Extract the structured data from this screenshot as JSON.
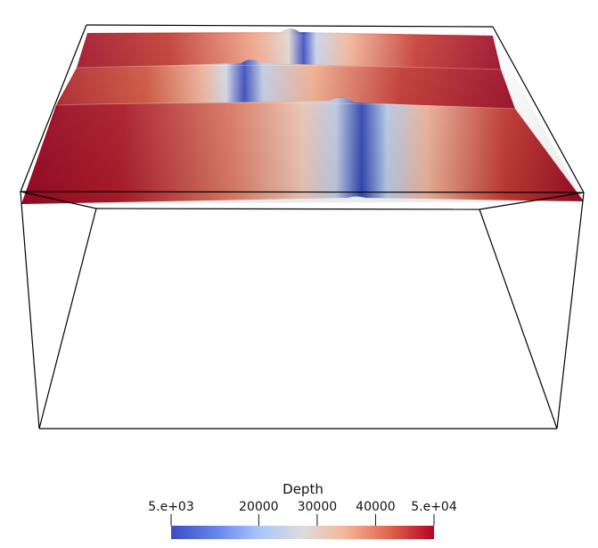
{
  "scene": {
    "background_color": "#ffffff",
    "outline_color": "#000000",
    "colormap": {
      "low": "#3b4cc0",
      "mid": "#dddddd",
      "high": "#b40426",
      "dark_high": "#9b0a25"
    }
  },
  "legend": {
    "title": "Depth",
    "tick_labels": [
      "5.e+03",
      "20000",
      "30000",
      "40000",
      "5.e+04"
    ],
    "tick_values": [
      5000,
      20000,
      30000,
      40000,
      50000
    ],
    "range": [
      5000,
      50000
    ]
  }
}
